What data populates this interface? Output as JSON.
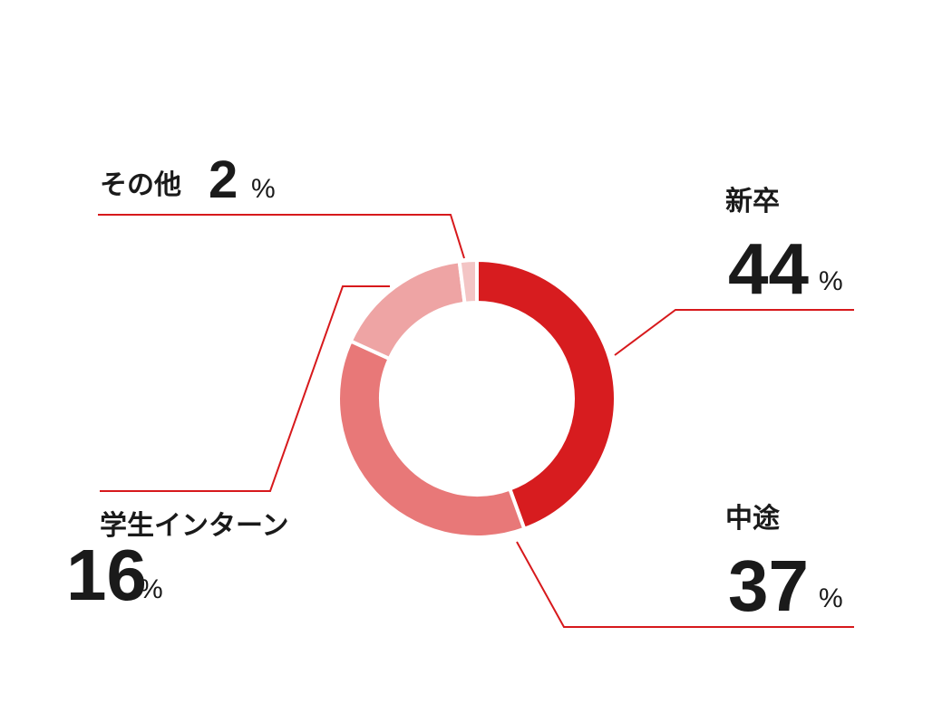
{
  "chart_data": {
    "type": "donut",
    "categories": [
      "新卒",
      "中途",
      "学生インターン",
      "その他"
    ],
    "values": [
      44,
      37,
      16,
      2
    ],
    "unit": "%",
    "colors": [
      "#d71c1f",
      "#e87878",
      "#eea4a4",
      "#f3c5c5"
    ],
    "line_color": "#d7191c"
  }
}
